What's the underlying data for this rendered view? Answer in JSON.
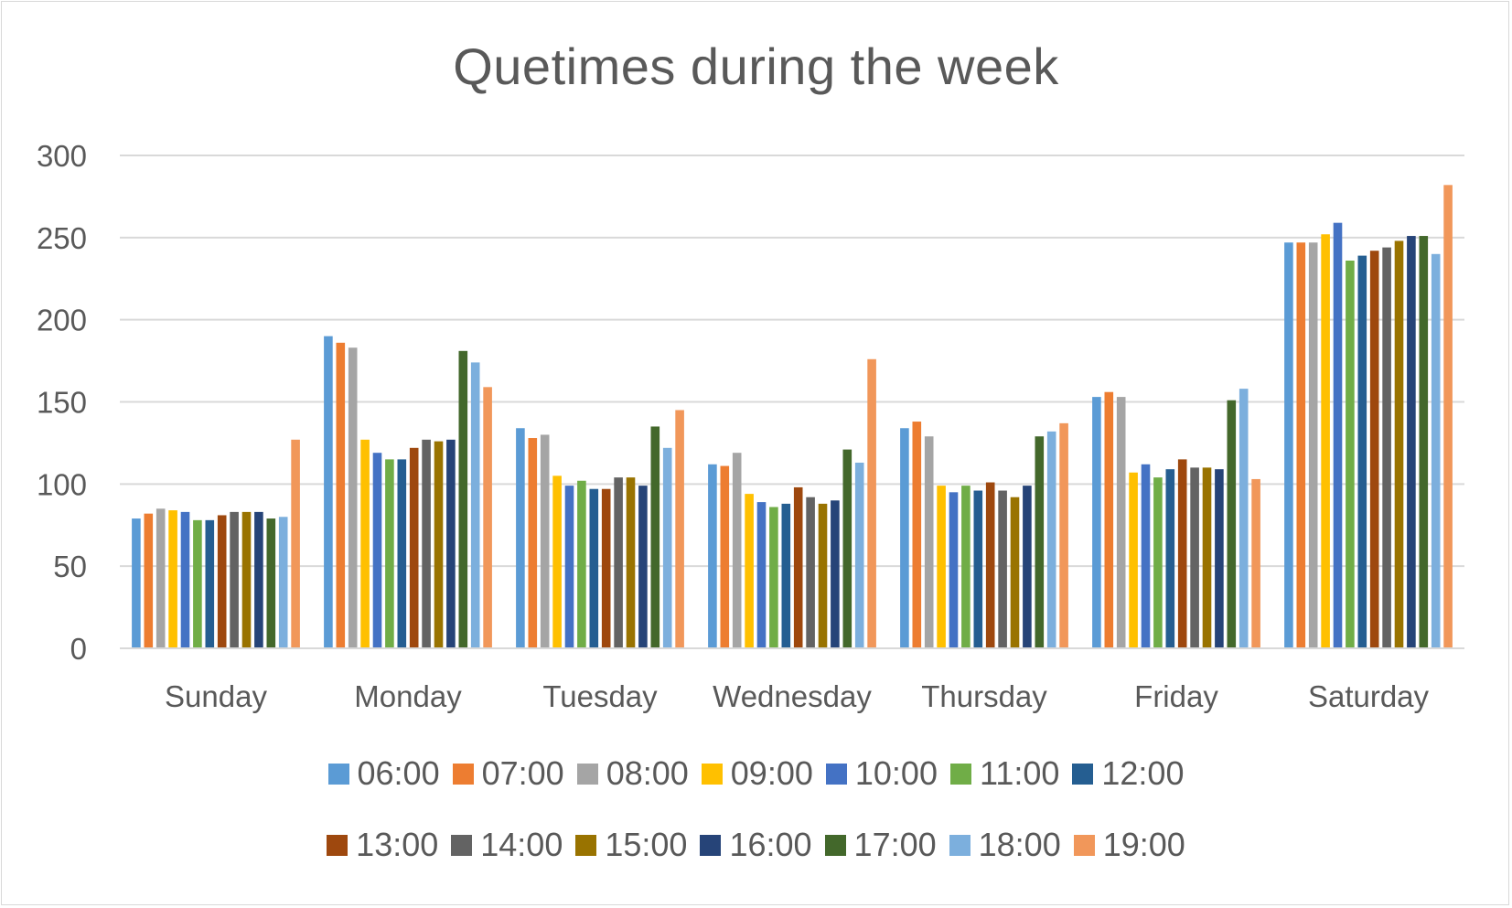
{
  "chart_data": {
    "type": "bar",
    "title": "Quetimes during the week",
    "xlabel": "",
    "ylabel": "",
    "ylim": [
      0,
      300
    ],
    "yticks": [
      "0",
      "50",
      "100",
      "150",
      "200",
      "250",
      "300"
    ],
    "grid": true,
    "legend_position": "bottom",
    "categories": [
      "Sunday",
      "Monday",
      "Tuesday",
      "Wednesday",
      "Thursday",
      "Friday",
      "Saturday"
    ],
    "series": [
      {
        "name": "06:00",
        "color": "#5B9BD5",
        "values": [
          79,
          190,
          134,
          112,
          134,
          153,
          247
        ]
      },
      {
        "name": "07:00",
        "color": "#ED7D31",
        "values": [
          82,
          186,
          128,
          111,
          138,
          156,
          247
        ]
      },
      {
        "name": "08:00",
        "color": "#A5A5A5",
        "values": [
          85,
          183,
          130,
          119,
          129,
          153,
          247
        ]
      },
      {
        "name": "09:00",
        "color": "#FFC000",
        "values": [
          84,
          127,
          105,
          94,
          99,
          107,
          252
        ]
      },
      {
        "name": "10:00",
        "color": "#4472C4",
        "values": [
          83,
          119,
          99,
          89,
          95,
          112,
          259
        ]
      },
      {
        "name": "11:00",
        "color": "#70AD47",
        "values": [
          78,
          115,
          102,
          86,
          99,
          104,
          236
        ]
      },
      {
        "name": "12:00",
        "color": "#255E91",
        "values": [
          78,
          115,
          97,
          88,
          96,
          109,
          239
        ]
      },
      {
        "name": "13:00",
        "color": "#9E480E",
        "values": [
          81,
          122,
          97,
          98,
          101,
          115,
          242
        ]
      },
      {
        "name": "14:00",
        "color": "#636363",
        "values": [
          83,
          127,
          104,
          92,
          96,
          110,
          244
        ]
      },
      {
        "name": "15:00",
        "color": "#997300",
        "values": [
          83,
          126,
          104,
          88,
          92,
          110,
          248
        ]
      },
      {
        "name": "16:00",
        "color": "#264478",
        "values": [
          83,
          127,
          99,
          90,
          99,
          109,
          251
        ]
      },
      {
        "name": "17:00",
        "color": "#43682B",
        "values": [
          79,
          181,
          135,
          121,
          129,
          151,
          251
        ]
      },
      {
        "name": "18:00",
        "color": "#7CAFDD",
        "values": [
          80,
          174,
          122,
          113,
          132,
          158,
          240
        ]
      },
      {
        "name": "19:00",
        "color": "#F1975A",
        "values": [
          127,
          159,
          145,
          176,
          137,
          103,
          282
        ]
      }
    ]
  }
}
